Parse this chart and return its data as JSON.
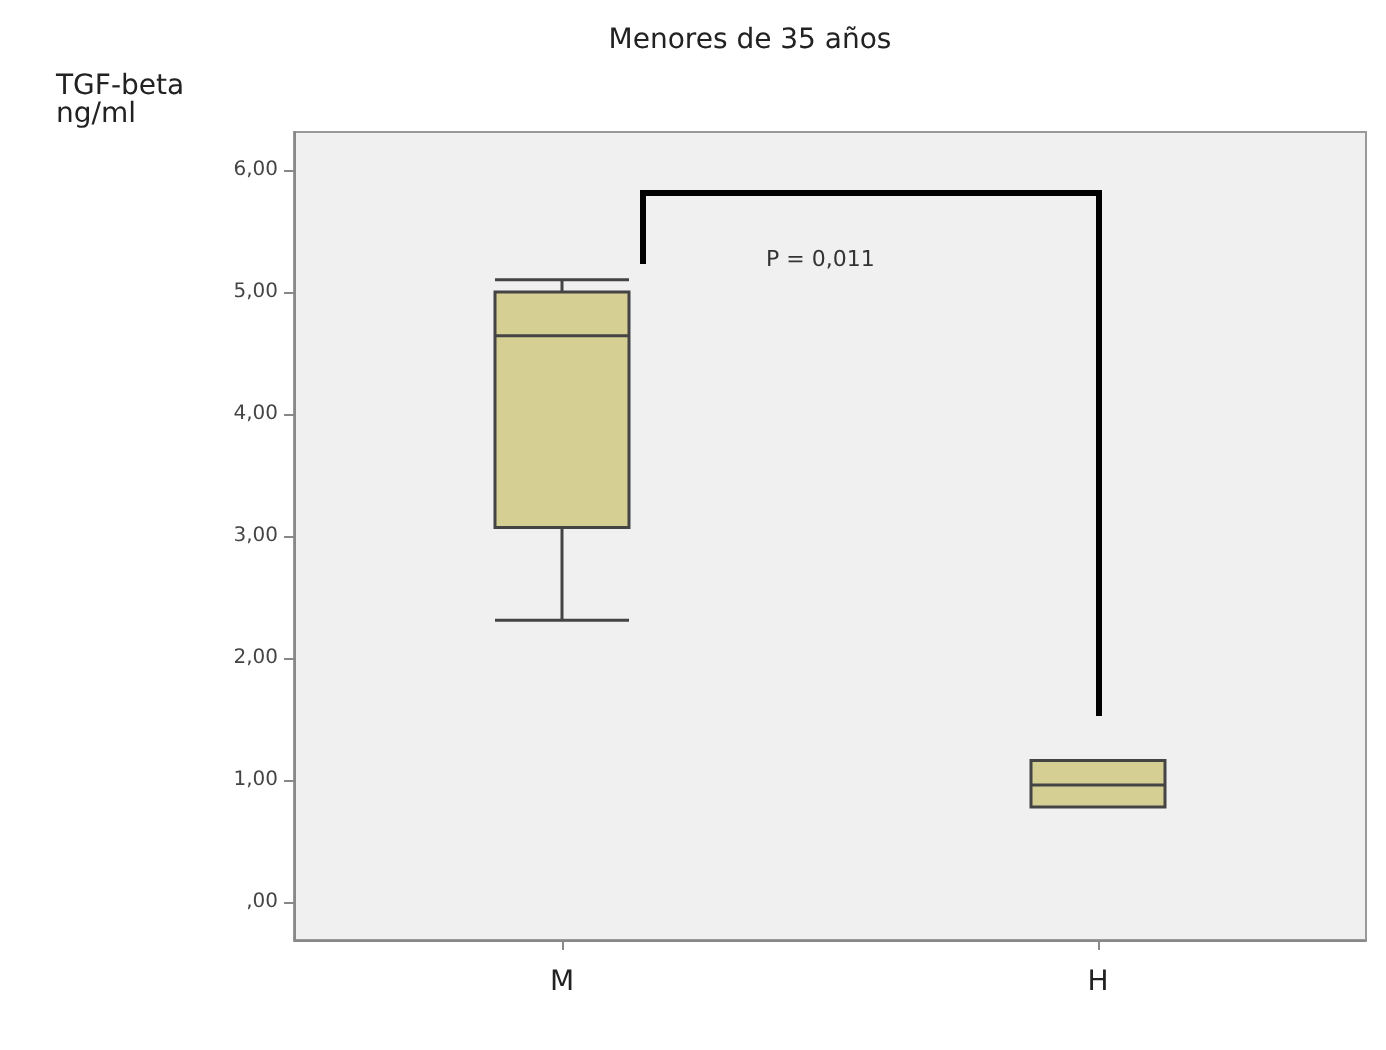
{
  "chart_data": {
    "type": "box",
    "title": "Menores de 35 años",
    "ylabel": "TGF-beta ng/ml",
    "categories": [
      "M",
      "H"
    ],
    "boxes": [
      {
        "low": 2.31,
        "q1": 3.07,
        "median": 4.64,
        "q3": 5.0,
        "high": 5.1
      },
      {
        "low": 0.78,
        "q1": 0.78,
        "median": 0.96,
        "q3": 1.16,
        "high": 1.16
      }
    ],
    "color": "#d6cf94",
    "ylim": [
      -0.31,
      6.31
    ],
    "yticks": [
      {
        "value": 0,
        "label": ",00"
      },
      {
        "value": 1,
        "label": "1,00"
      },
      {
        "value": 2,
        "label": "2,00"
      },
      {
        "value": 3,
        "label": "3,00"
      },
      {
        "value": 4,
        "label": "4,00"
      },
      {
        "value": 5,
        "label": "5,00"
      },
      {
        "value": 6,
        "label": "6,00"
      }
    ],
    "grid": false,
    "annotations": [
      "P = 0,011"
    ]
  }
}
